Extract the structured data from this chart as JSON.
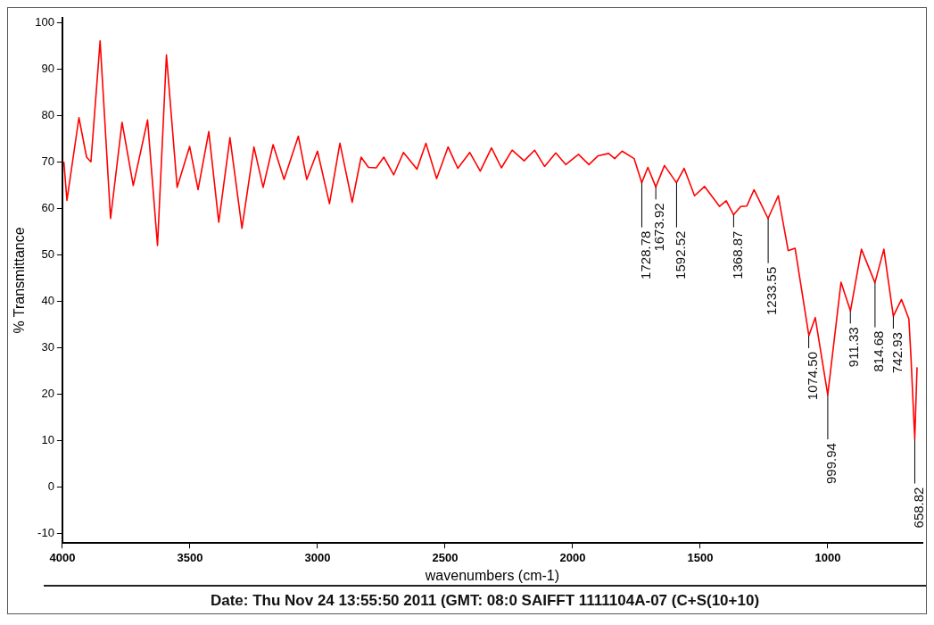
{
  "chart_data": {
    "type": "line",
    "xlabel": "wavenumbers (cm-1)",
    "ylabel": "% Transmittance",
    "xlim": [
      4000,
      629
    ],
    "ylim": [
      -12,
      101
    ],
    "xticks": [
      4000,
      3500,
      3000,
      2500,
      2000,
      1500,
      1000
    ],
    "yticks": [
      -10,
      0,
      10,
      20,
      30,
      40,
      50,
      60,
      70,
      80,
      90,
      100
    ],
    "grid": false,
    "legend": false,
    "marker": "none",
    "line_style": "solid",
    "series": [
      {
        "color": "#ff0000",
        "x": [
          3994,
          3982,
          3935,
          3905,
          3888,
          3852,
          3811,
          3766,
          3722,
          3666,
          3627,
          3592,
          3550,
          3501,
          3468,
          3426,
          3387,
          3343,
          3296,
          3249,
          3213,
          3174,
          3131,
          3075,
          3042,
          3000,
          2953,
          2912,
          2864,
          2829,
          2800,
          2770,
          2740,
          2701,
          2663,
          2610,
          2575,
          2533,
          2488,
          2450,
          2403,
          2362,
          2318,
          2279,
          2237,
          2190,
          2149,
          2110,
          2066,
          2027,
          1977,
          1936,
          1900,
          1859,
          1835,
          1806,
          1759,
          1729,
          1705,
          1674,
          1640,
          1593,
          1563,
          1522,
          1483,
          1424,
          1398,
          1369,
          1341,
          1317,
          1289,
          1234,
          1194,
          1155,
          1128,
          1074,
          1049,
          1000,
          948,
          911,
          868,
          815,
          780,
          743,
          711,
          682,
          674,
          659,
          650
        ],
        "values": [
          70,
          61.7,
          79.5,
          71,
          70,
          96,
          57.8,
          78.5,
          64.9,
          79,
          52,
          93,
          64.5,
          73.3,
          64,
          76.5,
          57,
          75.2,
          55.7,
          73.2,
          64.5,
          73.7,
          66.2,
          75.5,
          66.2,
          72.3,
          61,
          74,
          61.3,
          71,
          68.8,
          68.7,
          71,
          67.2,
          72,
          68.4,
          74,
          66.4,
          73.2,
          68.6,
          72,
          68,
          73,
          68.7,
          72.5,
          70.2,
          72.5,
          69,
          71.9,
          69.4,
          71.6,
          69.4,
          71.3,
          71.8,
          70.7,
          72.3,
          70.7,
          65.5,
          68.8,
          64.6,
          69.2,
          65.5,
          68.6,
          62.7,
          64.7,
          60.4,
          61.6,
          58.6,
          60.4,
          60.5,
          64,
          57.8,
          62.7,
          50.9,
          51.4,
          32.6,
          36.5,
          19.9,
          44.1,
          37.9,
          51.2,
          44,
          51.2,
          36.8,
          40.4,
          36.2,
          28.2,
          10.4,
          25.8
        ]
      }
    ],
    "annotations": [
      {
        "text": "1728.78",
        "x": 1728.78,
        "y": 65.5
      },
      {
        "text": "1673.92",
        "x": 1673.92,
        "y": 64.6
      },
      {
        "text": "1592.52",
        "x": 1592.52,
        "y": 65.5
      },
      {
        "text": "1368.87",
        "x": 1368.87,
        "y": 58.6
      },
      {
        "text": "1233.55",
        "x": 1233.55,
        "y": 57.8
      },
      {
        "text": "1074.50",
        "x": 1074.5,
        "y": 32.6
      },
      {
        "text": "999.94",
        "x": 999.94,
        "y": 19.9
      },
      {
        "text": "911.33",
        "x": 911.33,
        "y": 37.9
      },
      {
        "text": "814.68",
        "x": 814.68,
        "y": 44
      },
      {
        "text": "742.93",
        "x": 742.93,
        "y": 36.8
      },
      {
        "text": "658.82",
        "x": 658.82,
        "y": 10.4
      },
      "Date: Thu Nov 24 13:55:50 2011 (GMT: 08:0 SAIFFT 1111104A-07 (C+S(10+10)"
    ]
  }
}
